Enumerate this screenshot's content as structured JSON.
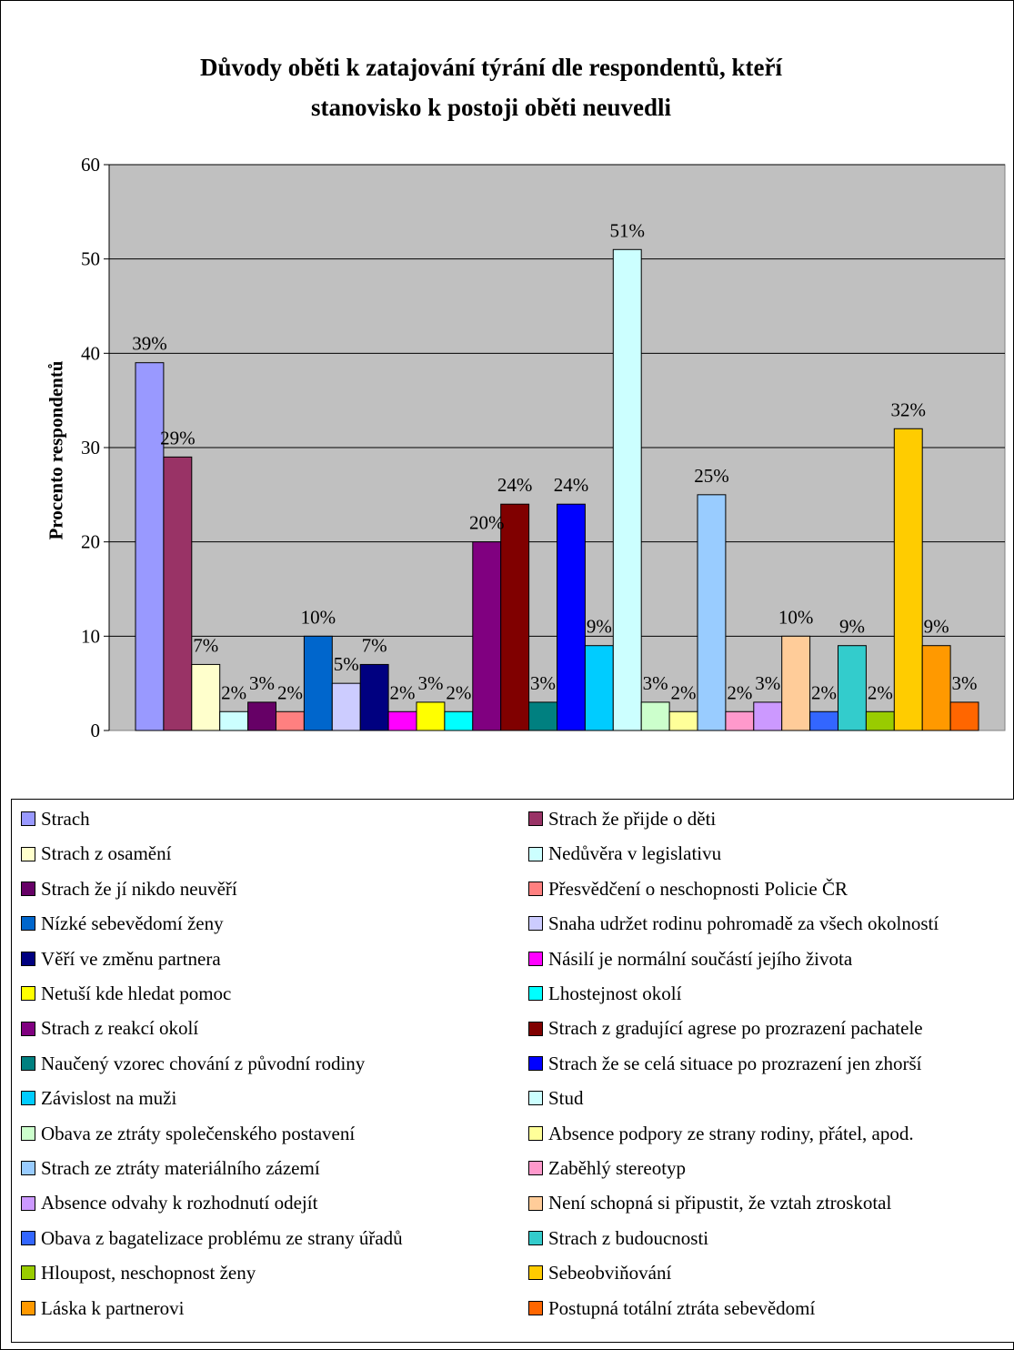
{
  "chart_data": {
    "type": "bar",
    "title": "Důvody oběti k zatajování týrání dle respondentů, kteří stanovisko k postoji oběti neuvedli",
    "title_lines": [
      "Důvody oběti k zatajování týrání dle respondentů, kteří",
      "stanovisko k postoji oběti neuvedli"
    ],
    "ylabel": "Procento respondentů",
    "xlabel": "",
    "ylim": [
      0,
      60
    ],
    "yticks": [
      "0",
      "10",
      "20",
      "30",
      "40",
      "50",
      "60"
    ],
    "grid": true,
    "plot_background": "#c0c0c0",
    "legend_position": "bottom",
    "series": [
      {
        "name": "Strach",
        "value": 39,
        "label": "39%",
        "color": "#9999ff"
      },
      {
        "name": "Strach že přijde o děti",
        "value": 29,
        "label": "29%",
        "color": "#993366"
      },
      {
        "name": "Strach z osamění",
        "value": 7,
        "label": "7%",
        "color": "#ffffcc"
      },
      {
        "name": "Nedůvěra v legislativu",
        "value": 2,
        "label": "2%",
        "color": "#ccffff"
      },
      {
        "name": "Strach že jí nikdo neuvěří",
        "value": 3,
        "label": "3%",
        "color": "#660066"
      },
      {
        "name": "Přesvědčení o neschopnosti Policie ČR",
        "value": 2,
        "label": "2%",
        "color": "#ff8080"
      },
      {
        "name": "Nízké sebevědomí ženy",
        "value": 10,
        "label": "10%",
        "color": "#0066cc"
      },
      {
        "name": "Snaha udržet rodinu pohromadě za všech okolností",
        "value": 5,
        "label": "5%",
        "color": "#ccccff"
      },
      {
        "name": "Věří ve změnu partnera",
        "value": 7,
        "label": "7%",
        "color": "#000080"
      },
      {
        "name": "Násilí je normální součástí jejího života",
        "value": 2,
        "label": "2%",
        "color": "#ff00ff"
      },
      {
        "name": "Netuší kde hledat pomoc",
        "value": 3,
        "label": "3%",
        "color": "#ffff00"
      },
      {
        "name": "Lhostejnost okolí",
        "value": 2,
        "label": "2%",
        "color": "#00ffff"
      },
      {
        "name": "Strach z reakcí okolí",
        "value": 20,
        "label": "20%",
        "color": "#800080"
      },
      {
        "name": "Strach z gradující agrese po prozrazení pachatele",
        "value": 24,
        "label": "24%",
        "color": "#800000"
      },
      {
        "name": "Naučený vzorec chování z původní rodiny",
        "value": 3,
        "label": "3%",
        "color": "#008080"
      },
      {
        "name": "Strach že se celá situace po prozrazení jen zhorší",
        "value": 24,
        "label": "24%",
        "color": "#0000ff"
      },
      {
        "name": "Závislost na muži",
        "value": 9,
        "label": "9%",
        "color": "#00ccff"
      },
      {
        "name": "Stud",
        "value": 51,
        "label": "51%",
        "color": "#ccffff"
      },
      {
        "name": "Obava ze ztráty společenského postavení",
        "value": 3,
        "label": "3%",
        "color": "#ccffcc"
      },
      {
        "name": "Absence podpory ze strany rodiny, přátel, apod.",
        "value": 2,
        "label": "2%",
        "color": "#ffff99"
      },
      {
        "name": "Strach ze ztráty materiálního zázemí",
        "value": 25,
        "label": "25%",
        "color": "#99ccff"
      },
      {
        "name": "Zaběhlý stereotyp",
        "value": 2,
        "label": "2%",
        "color": "#ff99cc"
      },
      {
        "name": "Absence odvahy k rozhodnutí odejít",
        "value": 3,
        "label": "3%",
        "color": "#cc99ff"
      },
      {
        "name": "Není schopná si připustit, že vztah ztroskotal",
        "value": 10,
        "label": "10%",
        "color": "#ffcc99"
      },
      {
        "name": "Obava z bagatelizace problému ze strany úřadů",
        "value": 2,
        "label": "2%",
        "color": "#3366ff"
      },
      {
        "name": "Strach z budoucnosti",
        "value": 9,
        "label": "9%",
        "color": "#33cccc"
      },
      {
        "name": "Hloupost, neschopnost ženy",
        "value": 2,
        "label": "2%",
        "color": "#99cc00"
      },
      {
        "name": "Sebeobviňování",
        "value": 32,
        "label": "32%",
        "color": "#ffcc00"
      },
      {
        "name": "Láska k partnerovi",
        "value": 9,
        "label": "9%",
        "color": "#ff9900"
      },
      {
        "name": "Postupná totální ztráta sebevědomí",
        "value": 3,
        "label": "3%",
        "color": "#ff6600"
      }
    ]
  }
}
